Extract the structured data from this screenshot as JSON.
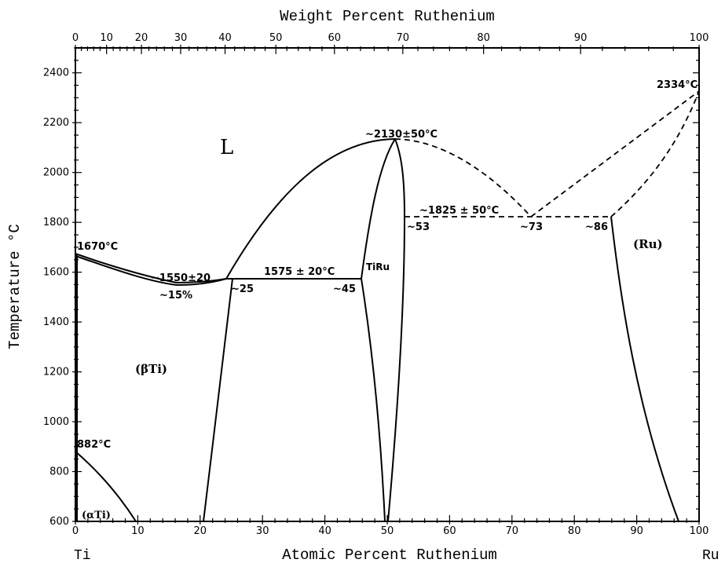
{
  "axes": {
    "top_title": "Weight Percent Ruthenium",
    "bottom_title": "Atomic Percent Ruthenium",
    "left_title": "Temperature °C",
    "left_element": "Ti",
    "right_element": "Ru",
    "atomic_range": [
      0,
      100
    ],
    "temperature_range": [
      600,
      2500
    ],
    "atomic_ticks": [
      "0",
      "10",
      "20",
      "30",
      "40",
      "50",
      "60",
      "70",
      "80",
      "90",
      "100"
    ],
    "weight_ticks": [
      "0",
      "10",
      "20",
      "30",
      "40",
      "50",
      "60",
      "70",
      "80",
      "90",
      "100"
    ],
    "temperature_ticks": [
      "600",
      "800",
      "1000",
      "1200",
      "1400",
      "1600",
      "1800",
      "2000",
      "2200",
      "2400"
    ]
  },
  "phases": {
    "liquid": "L",
    "beta_ti": "(βTi)",
    "alpha_ti": "(αTi)",
    "ru": "(Ru)",
    "tiru": "TiRu"
  },
  "annotations": {
    "ti_melting": "1670°C",
    "minimum_temp": "~1550±20",
    "minimum_comp": "~15%",
    "eutectic_temp": "1575 ± 20°C",
    "eutectic_left": "~25",
    "eutectic_right": "~45",
    "tiru_melting": "~2130±50°C",
    "peritectic_temp": "~1825 ± 50°C",
    "peritectic_left": "~53",
    "peritectic_mid": "~73",
    "peritectic_right": "~86",
    "ru_melting": "2334°C",
    "alpha_beta": "882°C"
  },
  "chart_data": {
    "type": "phase_diagram",
    "x_unit": "atomic percent Ru",
    "y_unit": "°C",
    "xlim": [
      0,
      100
    ],
    "ylim": [
      600,
      2500
    ],
    "boundaries": {
      "liquidus_left": [
        [
          0,
          1670
        ],
        [
          5,
          1610
        ],
        [
          10,
          1572
        ],
        [
          15,
          1552
        ],
        [
          20,
          1560
        ],
        [
          24,
          1575
        ]
      ],
      "solidus_left": [
        [
          0,
          1670
        ],
        [
          5,
          1600
        ],
        [
          10,
          1565
        ],
        [
          15,
          1550
        ],
        [
          20,
          1555
        ],
        [
          24,
          1575
        ]
      ],
      "liquidus_tiru_left": [
        [
          24,
          1575
        ],
        [
          30,
          1780
        ],
        [
          36,
          1935
        ],
        [
          42,
          2040
        ],
        [
          48,
          2105
        ],
        [
          51,
          2130
        ]
      ],
      "liquidus_tiru_right_dashed": [
        [
          51,
          2130
        ],
        [
          57,
          2090
        ],
        [
          63,
          2010
        ],
        [
          68,
          1920
        ],
        [
          73,
          1825
        ]
      ],
      "liquidus_ru_dashed": [
        [
          73,
          1825
        ],
        [
          86.5,
          2070
        ],
        [
          100,
          2334
        ]
      ],
      "solidus_ru_dashed": [
        [
          86,
          1825
        ],
        [
          92,
          1965
        ],
        [
          97,
          2140
        ],
        [
          100,
          2334
        ]
      ],
      "tiru_left_boundary": [
        [
          45,
          1575
        ],
        [
          47,
          1860
        ],
        [
          49,
          2080
        ],
        [
          51,
          2130
        ]
      ],
      "tiru_left_subsolidus": [
        [
          45,
          1575
        ],
        [
          47.5,
          1100
        ],
        [
          49.5,
          600
        ]
      ],
      "tiru_right_boundary": [
        [
          51,
          2130
        ],
        [
          52.5,
          1960
        ],
        [
          52.5,
          1825
        ],
        [
          51.5,
          1300
        ],
        [
          50.5,
          600
        ]
      ],
      "beta_ti_solvus": [
        [
          25,
          1575
        ],
        [
          23,
          1130
        ],
        [
          20.5,
          600
        ]
      ],
      "ru_solvus": [
        [
          86,
          1825
        ],
        [
          88,
          1380
        ],
        [
          92.5,
          1000
        ],
        [
          96.5,
          600
        ]
      ],
      "alpha_ti_upper": [
        [
          0,
          882
        ],
        [
          4.5,
          760
        ],
        [
          9.5,
          600
        ]
      ],
      "alpha_ti_lower": [
        [
          0,
          1670
        ],
        [
          0.5,
          1000
        ],
        [
          0.5,
          600
        ]
      ]
    },
    "invariants": [
      {
        "type": "eutectic",
        "temperature": 1575,
        "compositions": [
          24,
          25,
          45
        ]
      },
      {
        "type": "peritectic",
        "temperature": 1825,
        "compositions": [
          53,
          73,
          86
        ]
      }
    ],
    "points": {
      "ti_melting": [
        0,
        1670
      ],
      "congruent_min": [
        15,
        1550
      ],
      "tiru_melting": [
        51,
        2130
      ],
      "ru_melting": [
        100,
        2334
      ],
      "alpha_beta": [
        0,
        882
      ]
    }
  }
}
